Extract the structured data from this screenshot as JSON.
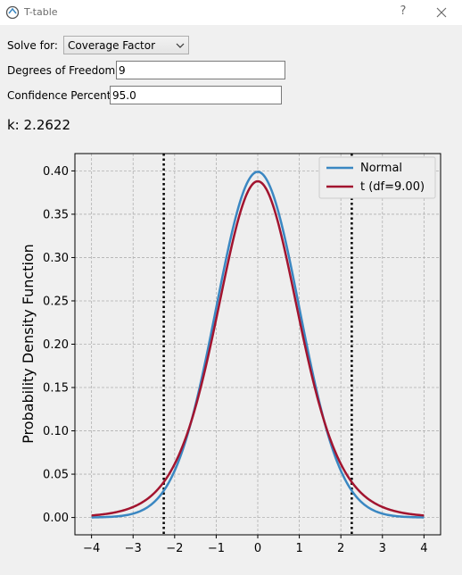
{
  "window": {
    "title": "T-table",
    "help_label": "?"
  },
  "form": {
    "solve_for_label": "Solve for:",
    "solve_for_value": "Coverage Factor",
    "dof_label": "Degrees of Freedom",
    "dof_value": "9",
    "confidence_label": "Confidence Percent",
    "confidence_value": "95.0"
  },
  "result": {
    "text": "k: 2.2622"
  },
  "colors": {
    "normal": "#3a87c2",
    "t": "#a2142f",
    "plot_bg": "#eeeeee",
    "grid": "#b0b0b0"
  },
  "chart_data": {
    "type": "line",
    "ylabel": "Probability Density Function",
    "xlim": [
      -4.4,
      4.4
    ],
    "ylim": [
      -0.02,
      0.42
    ],
    "x_ticks": [
      -4,
      -3,
      -2,
      -1,
      0,
      1,
      2,
      3,
      4
    ],
    "x_tick_labels": [
      "−4",
      "−3",
      "−2",
      "−1",
      "0",
      "1",
      "2",
      "3",
      "4"
    ],
    "y_ticks": [
      0.0,
      0.05,
      0.1,
      0.15,
      0.2,
      0.25,
      0.3,
      0.35,
      0.4
    ],
    "y_tick_labels": [
      "0.00",
      "0.05",
      "0.10",
      "0.15",
      "0.20",
      "0.25",
      "0.30",
      "0.35",
      "0.40"
    ],
    "grid": true,
    "legend_position": "top-right",
    "series": [
      {
        "name": "Normal",
        "distribution": "normal",
        "x_range": [
          -4,
          4
        ]
      },
      {
        "name": "t (df=9.00)",
        "distribution": "t",
        "df": 9,
        "x_range": [
          -4,
          4
        ]
      }
    ],
    "vlines": [
      -2.2622,
      2.2622
    ]
  }
}
